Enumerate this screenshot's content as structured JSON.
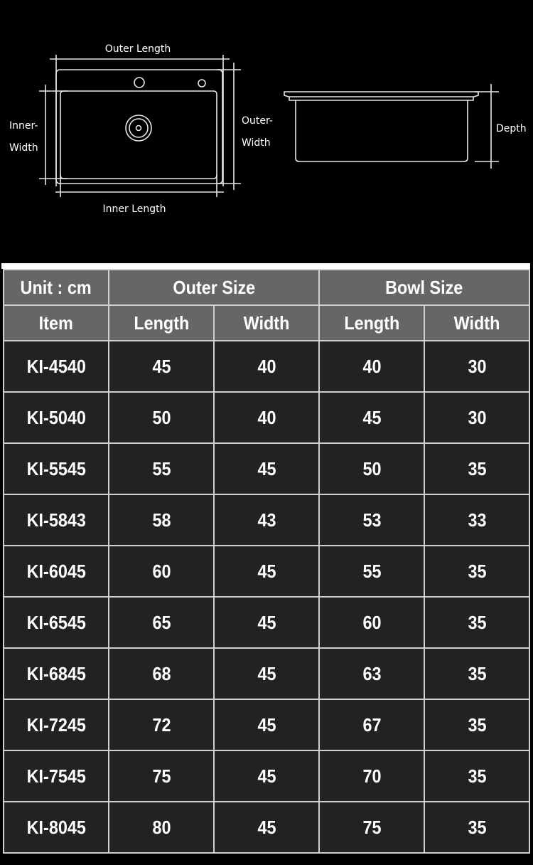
{
  "diagram": {
    "top_view": {
      "outer_length": "Outer Length",
      "inner_length": "Inner Length",
      "inner_width": [
        "Inner-",
        "Width"
      ],
      "outer_width": [
        "Outer-",
        "Width"
      ]
    },
    "side_view": {
      "depth": "Depth"
    }
  },
  "table": {
    "unit_label": "Unit : cm",
    "group_headers": [
      "Outer Size",
      "Bowl Size"
    ],
    "columns": [
      "Item",
      "Length",
      "Width",
      "Length",
      "Width"
    ],
    "rows": [
      [
        "KI-4540",
        "45",
        "40",
        "40",
        "30"
      ],
      [
        "KI-5040",
        "50",
        "40",
        "45",
        "30"
      ],
      [
        "KI-5545",
        "55",
        "45",
        "50",
        "35"
      ],
      [
        "KI-5843",
        "58",
        "43",
        "53",
        "33"
      ],
      [
        "KI-6045",
        "60",
        "45",
        "55",
        "35"
      ],
      [
        "KI-6545",
        "65",
        "45",
        "60",
        "35"
      ],
      [
        "KI-6845",
        "68",
        "45",
        "63",
        "35"
      ],
      [
        "KI-7245",
        "72",
        "45",
        "67",
        "35"
      ],
      [
        "KI-7545",
        "75",
        "45",
        "70",
        "35"
      ],
      [
        "KI-8045",
        "80",
        "45",
        "75",
        "35"
      ]
    ]
  },
  "colors": {
    "header_bg": "#666666",
    "body_bg": "#222222",
    "grid": "#d0d0d0",
    "background": "#000000"
  }
}
